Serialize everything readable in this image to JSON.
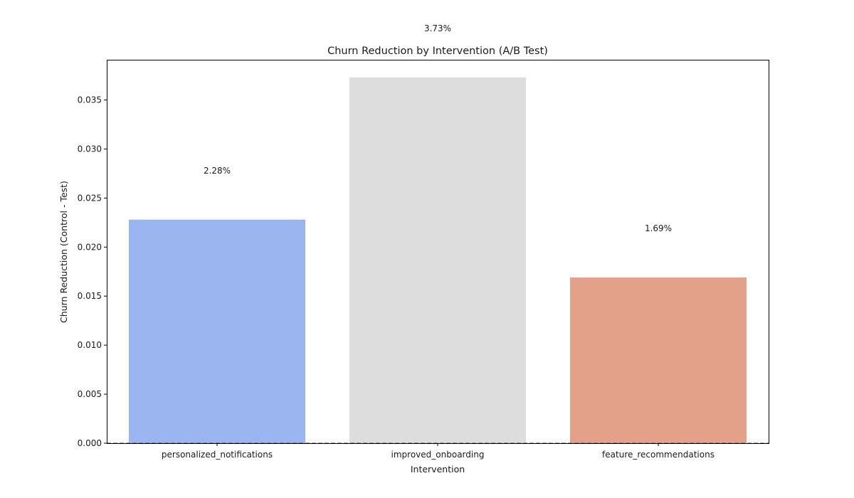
{
  "chart_data": {
    "type": "bar",
    "title": "Churn Reduction by Intervention (A/B Test)",
    "xlabel": "Intervention",
    "ylabel": "Churn Reduction (Control - Test)",
    "categories": [
      "personalized_notifications",
      "improved_onboarding",
      "feature_recommendations"
    ],
    "values": [
      0.0228,
      0.0373,
      0.0169
    ],
    "data_labels": [
      "2.28%",
      "3.73%",
      "1.69%"
    ],
    "colors": [
      "#9bb5f0",
      "#dddddd",
      "#e4a18a"
    ],
    "ylim": [
      0,
      0.0391
    ],
    "yticks": [
      0.0,
      0.005,
      0.01,
      0.015,
      0.02,
      0.025,
      0.03,
      0.035
    ],
    "ytick_labels": [
      "0.000",
      "0.005",
      "0.010",
      "0.015",
      "0.020",
      "0.025",
      "0.030",
      "0.035"
    ],
    "reference_line": {
      "y": 0,
      "style": "dashed",
      "color": "#555555"
    },
    "grid": false,
    "legend": "none"
  }
}
